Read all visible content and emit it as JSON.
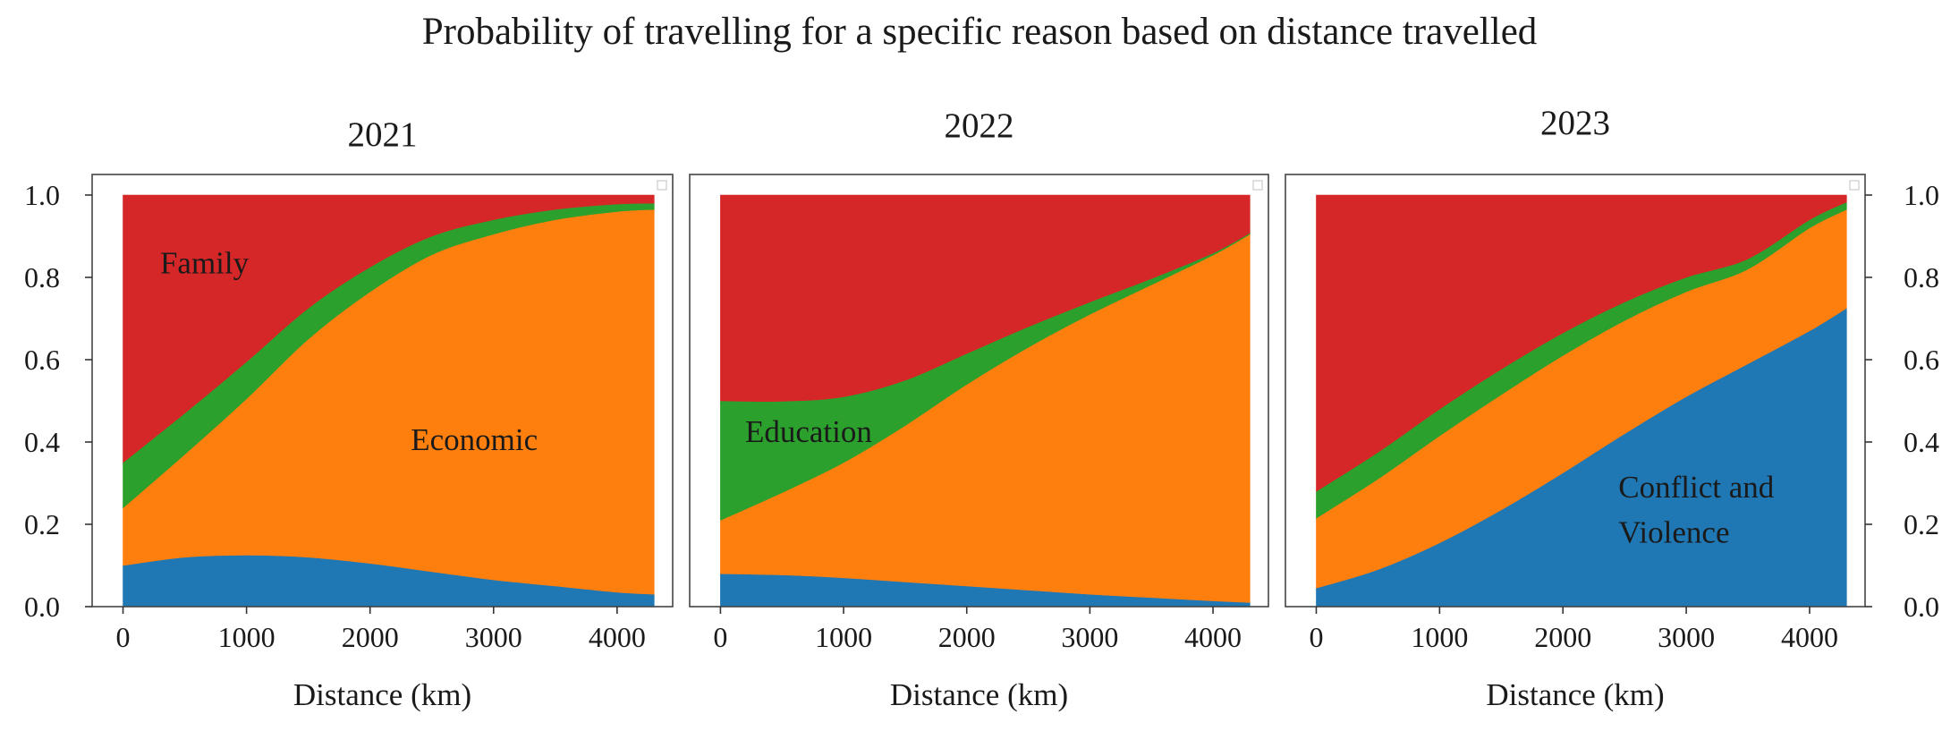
{
  "title": "Probability of travelling for a specific reason based on distance travelled",
  "colors": {
    "conflict": "#1f77b4",
    "economic": "#ff7f0e",
    "education": "#2ca02c",
    "family": "#d62728"
  },
  "chart_data": [
    {
      "type": "area",
      "subtype": "stacked-100",
      "title": "2021",
      "xlabel": "Distance (km)",
      "ylabel": "",
      "xlim": [
        -250,
        4450
      ],
      "ylim": [
        0,
        1.05
      ],
      "xticks": [
        "0",
        "1000",
        "2000",
        "3000",
        "4000"
      ],
      "yticks": [
        "0.0",
        "0.2",
        "0.4",
        "0.6",
        "0.8",
        "1.0"
      ],
      "x": [
        0,
        500,
        1000,
        1500,
        2000,
        2500,
        3000,
        3500,
        4000,
        4300
      ],
      "series": [
        {
          "name": "Conflict and Violence",
          "values": [
            0.1,
            0.12,
            0.125,
            0.12,
            0.105,
            0.085,
            0.065,
            0.05,
            0.035,
            0.03
          ]
        },
        {
          "name": "Economic",
          "values": [
            0.14,
            0.25,
            0.38,
            0.53,
            0.66,
            0.77,
            0.84,
            0.89,
            0.925,
            0.935
          ]
        },
        {
          "name": "Education",
          "values": [
            0.11,
            0.1,
            0.09,
            0.075,
            0.06,
            0.045,
            0.035,
            0.025,
            0.018,
            0.015
          ]
        },
        {
          "name": "Family",
          "values": [
            0.65,
            0.53,
            0.405,
            0.275,
            0.175,
            0.1,
            0.06,
            0.035,
            0.022,
            0.02
          ]
        }
      ],
      "annotations": [
        {
          "text": "Family",
          "x": 300,
          "y": 0.81
        },
        {
          "text": "Economic",
          "x": 2330,
          "y": 0.38
        }
      ],
      "legend": "top-right (empty)"
    },
    {
      "type": "area",
      "subtype": "stacked-100",
      "title": "2022",
      "xlabel": "Distance (km)",
      "ylabel": "",
      "xlim": [
        -250,
        4450
      ],
      "ylim": [
        0,
        1.05
      ],
      "xticks": [
        "0",
        "1000",
        "2000",
        "3000",
        "4000"
      ],
      "yticks": [],
      "x": [
        0,
        500,
        1000,
        1500,
        2000,
        2500,
        3000,
        3500,
        4000,
        4300
      ],
      "series": [
        {
          "name": "Conflict and Violence",
          "values": [
            0.08,
            0.077,
            0.07,
            0.06,
            0.05,
            0.04,
            0.03,
            0.022,
            0.014,
            0.01
          ]
        },
        {
          "name": "Economic",
          "values": [
            0.13,
            0.2,
            0.28,
            0.38,
            0.49,
            0.59,
            0.68,
            0.76,
            0.84,
            0.895
          ]
        },
        {
          "name": "Education",
          "values": [
            0.29,
            0.222,
            0.16,
            0.11,
            0.075,
            0.05,
            0.03,
            0.015,
            0.005,
            0.003
          ]
        },
        {
          "name": "Family",
          "values": [
            0.5,
            0.501,
            0.49,
            0.45,
            0.385,
            0.32,
            0.26,
            0.203,
            0.141,
            0.092
          ]
        }
      ],
      "annotations": [
        {
          "text": "Education",
          "x": 200,
          "y": 0.4
        }
      ],
      "legend": "top-right (empty)"
    },
    {
      "type": "area",
      "subtype": "stacked-100",
      "title": "2023",
      "xlabel": "Distance (km)",
      "ylabel": "",
      "xlim": [
        -250,
        4450
      ],
      "ylim": [
        0,
        1.05
      ],
      "xticks": [
        "0",
        "1000",
        "2000",
        "3000",
        "4000"
      ],
      "yticks": [
        "0.0",
        "0.2",
        "0.4",
        "0.6",
        "0.8",
        "1.0"
      ],
      "x": [
        0,
        500,
        1000,
        1500,
        2000,
        2500,
        3000,
        3500,
        4000,
        4300
      ],
      "series": [
        {
          "name": "Conflict and Violence",
          "values": [
            0.045,
            0.09,
            0.155,
            0.235,
            0.325,
            0.42,
            0.51,
            0.59,
            0.67,
            0.725
          ]
        },
        {
          "name": "Economic",
          "values": [
            0.17,
            0.22,
            0.26,
            0.28,
            0.285,
            0.275,
            0.255,
            0.23,
            0.25,
            0.24
          ]
        },
        {
          "name": "Education",
          "values": [
            0.065,
            0.065,
            0.065,
            0.062,
            0.055,
            0.045,
            0.035,
            0.025,
            0.02,
            0.018
          ]
        },
        {
          "name": "Family",
          "values": [
            0.72,
            0.625,
            0.52,
            0.423,
            0.335,
            0.26,
            0.2,
            0.155,
            0.06,
            0.017
          ]
        }
      ],
      "annotations": [
        {
          "text": "Conflict and",
          "x": 2450,
          "y": 0.265
        },
        {
          "text": "Violence",
          "x": 2450,
          "y": 0.155
        }
      ],
      "legend": "top-right (empty)",
      "yaxis_side": "right"
    }
  ]
}
